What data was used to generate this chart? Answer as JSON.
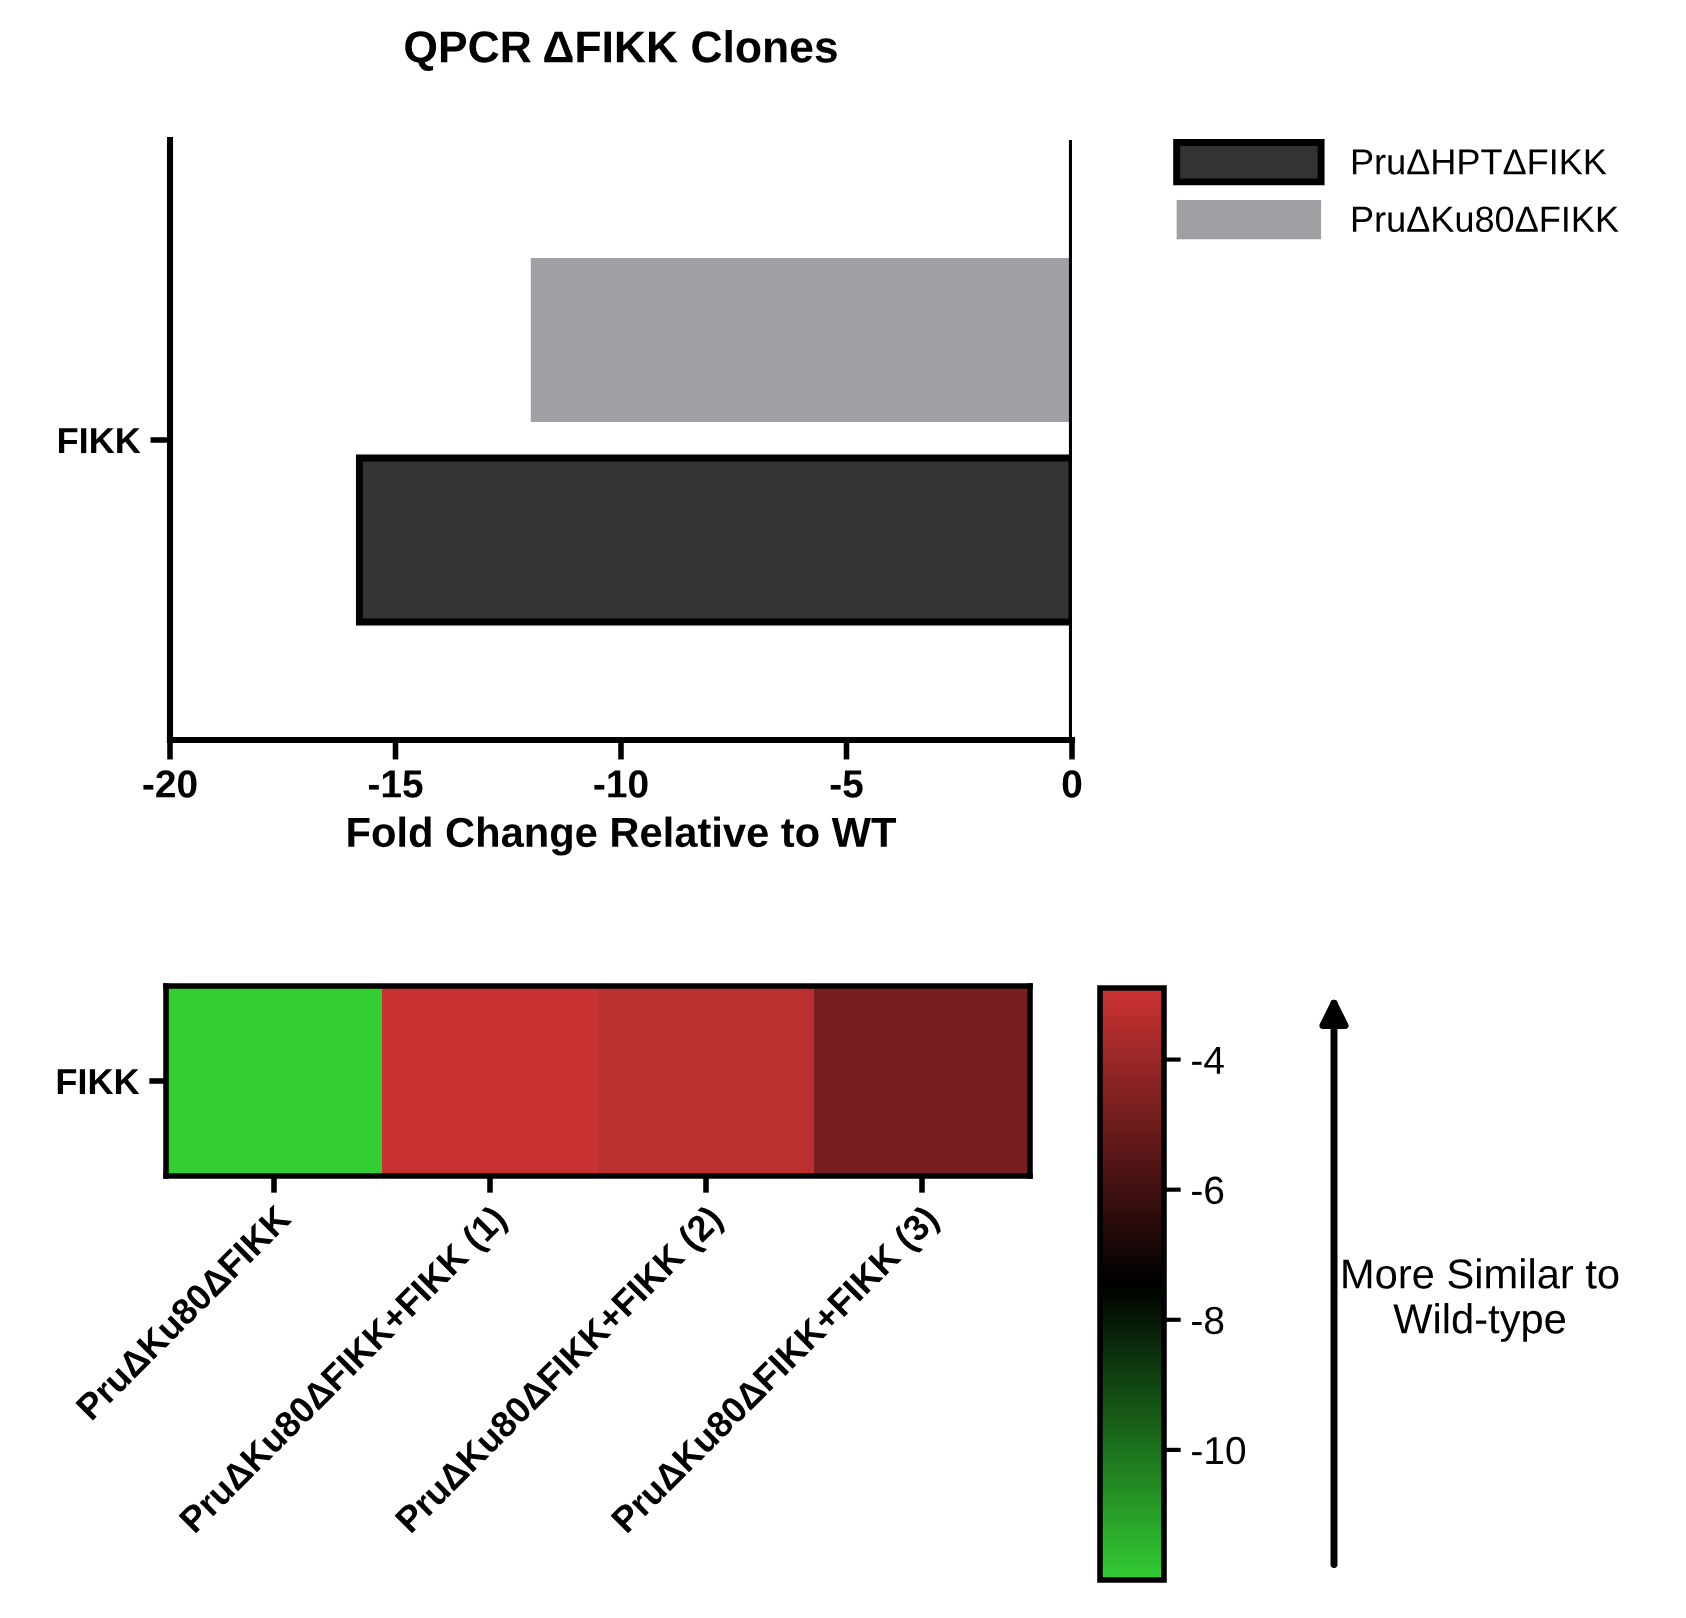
{
  "chart_data": [
    {
      "type": "bar",
      "title": "QPCR ΔFIKK Clones",
      "xlabel": "Fold Change Relative to WT",
      "orientation": "horizontal",
      "categories": [
        "FIKK"
      ],
      "series": [
        {
          "name": "PruΔHPTΔFIKK",
          "color": "#333333",
          "values": [
            -15.8
          ]
        },
        {
          "name": "PruΔKu80ΔFIKK",
          "color": "#a09fa4",
          "values": [
            -12.0
          ]
        }
      ],
      "xlim": [
        -20,
        0
      ],
      "xticks": [
        -20,
        -15,
        -10,
        -5,
        0
      ],
      "ref_lines": [
        {
          "axis": "x",
          "value": 0
        }
      ],
      "grid": false,
      "legend": "top right"
    },
    {
      "type": "heatmap",
      "categories": [
        "PruΔKu80ΔFIKK",
        "PruΔKu80ΔFIKK+FIKK (1)",
        "PruΔKu80ΔFIKK+FIKK (2)",
        "PruΔKu80ΔFIKK+FIKK (3)"
      ],
      "y_categories": [
        "FIKK"
      ],
      "cells": [
        [
          -12.0,
          -3.0,
          -3.3,
          -4.8
        ]
      ],
      "colors": [
        "#33cc33",
        "#000000",
        "#cc3333"
      ],
      "clim": [
        -12,
        -2.9
      ],
      "cticks": [
        -4,
        -6,
        -8,
        -10
      ],
      "annotations": [
        "More Similar to Wild-type"
      ]
    }
  ]
}
